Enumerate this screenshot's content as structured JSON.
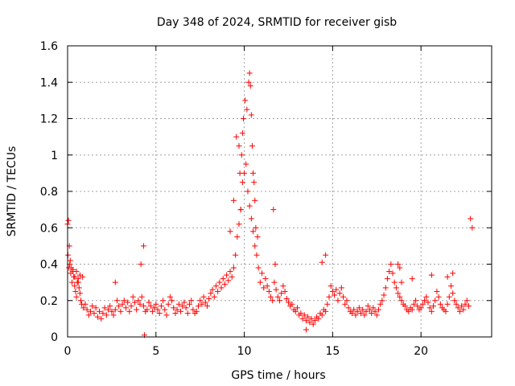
{
  "chart_data": {
    "type": "scatter",
    "title": "Day 348 of 2024, SRMTID for receiver gisb",
    "xlabel": "GPS time / hours",
    "ylabel": "SRMTID / TECUs",
    "xlim": [
      0,
      24
    ],
    "ylim": [
      0,
      1.6
    ],
    "xticks": [
      0,
      5,
      10,
      15,
      20
    ],
    "xtick_labels": [
      "0",
      "5",
      "10",
      "15",
      "20"
    ],
    "yticks": [
      0,
      0.2,
      0.4,
      0.6,
      0.8,
      1.0,
      1.2,
      1.4,
      1.6
    ],
    "ytick_labels": [
      "0",
      "0.2",
      "0.4",
      "0.6",
      "0.8",
      "1",
      "1.2",
      "1.4",
      "1.6"
    ],
    "grid": true,
    "marker": "plus",
    "color": "#ff0000",
    "series": [
      {
        "name": "SRMTID",
        "x": [
          0.0,
          0.05,
          0.1,
          0.15,
          0.2,
          0.25,
          0.3,
          0.35,
          0.4,
          0.45,
          0.5,
          0.55,
          0.6,
          0.65,
          0.7,
          0.75,
          0.8,
          0.9,
          1.0,
          1.1,
          1.2,
          1.3,
          1.4,
          1.5,
          1.6,
          1.7,
          1.8,
          1.9,
          2.0,
          2.1,
          2.2,
          2.3,
          2.4,
          2.5,
          2.6,
          2.7,
          2.8,
          2.9,
          3.0,
          3.1,
          3.2,
          3.3,
          3.4,
          3.5,
          3.6,
          3.7,
          3.8,
          3.9,
          4.0,
          4.1,
          4.2,
          4.3,
          4.4,
          4.5,
          4.6,
          4.7,
          4.8,
          4.9,
          5.0,
          5.1,
          5.2,
          5.3,
          5.4,
          5.5,
          5.6,
          5.7,
          5.8,
          5.9,
          6.0,
          6.1,
          6.2,
          6.3,
          6.4,
          6.5,
          6.6,
          6.7,
          6.8,
          6.9,
          7.0,
          7.1,
          7.2,
          7.3,
          7.4,
          7.5,
          7.6,
          7.7,
          7.8,
          7.9,
          8.0,
          8.1,
          8.2,
          8.3,
          8.4,
          8.5,
          8.6,
          8.7,
          8.8,
          8.9,
          9.0,
          9.1,
          9.2,
          9.3,
          9.4,
          9.5,
          9.6,
          9.7,
          9.8,
          9.9,
          10.0,
          10.1,
          10.2,
          10.3,
          10.4,
          10.5,
          10.6,
          10.7,
          10.8,
          10.9,
          11.0,
          11.1,
          11.2,
          11.3,
          11.4,
          11.5,
          11.6,
          11.7,
          11.8,
          11.9,
          12.0,
          12.1,
          12.2,
          12.3,
          12.4,
          12.5,
          12.6,
          12.7,
          12.8,
          12.9,
          13.0,
          13.1,
          13.2,
          13.3,
          13.4,
          13.5,
          13.6,
          13.7,
          13.8,
          13.9,
          14.0,
          14.1,
          14.2,
          14.3,
          14.4,
          14.5,
          14.6,
          14.7,
          14.8,
          14.9,
          15.0,
          15.1,
          15.2,
          15.3,
          15.4,
          15.5,
          15.6,
          15.7,
          15.8,
          15.9,
          16.0,
          16.1,
          16.2,
          16.3,
          16.4,
          16.5,
          16.6,
          16.7,
          16.8,
          16.9,
          17.0,
          17.1,
          17.2,
          17.3,
          17.4,
          17.5,
          17.6,
          17.7,
          17.8,
          17.9,
          18.0,
          18.1,
          18.2,
          18.3,
          18.4,
          18.5,
          18.6,
          18.7,
          18.8,
          18.9,
          19.0,
          19.1,
          19.2,
          19.3,
          19.4,
          19.5,
          19.6,
          19.7,
          19.8,
          19.9,
          20.0,
          20.1,
          20.2,
          20.3,
          20.4,
          20.5,
          20.6,
          20.7,
          20.8,
          20.9,
          21.0,
          21.1,
          21.2,
          21.3,
          21.4,
          21.5,
          21.6,
          21.7,
          21.8,
          21.9,
          22.0,
          22.1,
          22.2,
          22.3,
          22.4,
          22.5,
          22.6,
          22.7,
          22.8,
          22.9,
          0.02,
          0.08,
          0.12,
          0.18,
          0.3,
          0.4,
          0.5,
          0.6,
          0.7,
          0.85,
          2.7,
          4.15,
          4.3,
          9.2,
          9.4,
          9.55,
          9.7,
          9.75,
          9.8,
          9.85,
          9.9,
          9.95,
          10.05,
          10.15,
          10.25,
          10.3,
          10.35,
          10.4,
          10.45,
          10.5,
          10.55,
          10.6,
          10.65,
          10.75,
          11.65,
          11.75,
          14.4,
          14.6,
          18.7,
          18.8,
          18.9,
          19.5,
          20.6,
          21.5,
          21.8,
          4.35,
          13.5
        ],
        "y": [
          0.62,
          0.64,
          0.5,
          0.42,
          0.38,
          0.3,
          0.36,
          0.33,
          0.28,
          0.25,
          0.22,
          0.3,
          0.32,
          0.27,
          0.24,
          0.2,
          0.18,
          0.16,
          0.18,
          0.15,
          0.12,
          0.14,
          0.17,
          0.13,
          0.16,
          0.11,
          0.14,
          0.1,
          0.13,
          0.16,
          0.12,
          0.15,
          0.17,
          0.14,
          0.12,
          0.15,
          0.2,
          0.17,
          0.14,
          0.18,
          0.2,
          0.16,
          0.19,
          0.14,
          0.17,
          0.22,
          0.19,
          0.15,
          0.2,
          0.18,
          0.22,
          0.17,
          0.14,
          0.15,
          0.19,
          0.17,
          0.14,
          0.16,
          0.18,
          0.15,
          0.13,
          0.17,
          0.2,
          0.15,
          0.12,
          0.18,
          0.22,
          0.2,
          0.16,
          0.13,
          0.15,
          0.18,
          0.14,
          0.17,
          0.19,
          0.16,
          0.13,
          0.18,
          0.2,
          0.15,
          0.13,
          0.14,
          0.17,
          0.2,
          0.18,
          0.22,
          0.19,
          0.17,
          0.21,
          0.24,
          0.26,
          0.22,
          0.28,
          0.25,
          0.3,
          0.27,
          0.32,
          0.29,
          0.34,
          0.31,
          0.36,
          0.33,
          0.38,
          0.45,
          0.55,
          0.62,
          0.7,
          0.85,
          0.9,
          0.95,
          0.8,
          0.72,
          0.65,
          0.58,
          0.5,
          0.45,
          0.38,
          0.3,
          0.35,
          0.27,
          0.32,
          0.28,
          0.25,
          0.22,
          0.2,
          0.3,
          0.26,
          0.22,
          0.2,
          0.24,
          0.28,
          0.25,
          0.21,
          0.19,
          0.17,
          0.18,
          0.15,
          0.14,
          0.16,
          0.12,
          0.13,
          0.1,
          0.12,
          0.09,
          0.11,
          0.08,
          0.1,
          0.07,
          0.09,
          0.11,
          0.1,
          0.13,
          0.12,
          0.15,
          0.14,
          0.18,
          0.22,
          0.28,
          0.25,
          0.23,
          0.26,
          0.2,
          0.24,
          0.27,
          0.22,
          0.18,
          0.2,
          0.16,
          0.14,
          0.13,
          0.15,
          0.12,
          0.14,
          0.16,
          0.13,
          0.15,
          0.12,
          0.14,
          0.17,
          0.15,
          0.13,
          0.16,
          0.14,
          0.12,
          0.15,
          0.18,
          0.2,
          0.23,
          0.27,
          0.32,
          0.36,
          0.4,
          0.35,
          0.3,
          0.27,
          0.24,
          0.22,
          0.2,
          0.18,
          0.17,
          0.15,
          0.14,
          0.16,
          0.15,
          0.18,
          0.2,
          0.17,
          0.15,
          0.16,
          0.18,
          0.2,
          0.22,
          0.19,
          0.16,
          0.14,
          0.17,
          0.2,
          0.25,
          0.22,
          0.18,
          0.16,
          0.15,
          0.14,
          0.18,
          0.22,
          0.28,
          0.24,
          0.2,
          0.18,
          0.16,
          0.14,
          0.17,
          0.15,
          0.18,
          0.2,
          0.17,
          0.65,
          0.6,
          0.45,
          0.38,
          0.4,
          0.35,
          0.37,
          0.33,
          0.36,
          0.3,
          0.34,
          0.33,
          0.3,
          0.4,
          0.5,
          0.58,
          0.75,
          1.1,
          1.05,
          0.9,
          0.7,
          1.0,
          1.12,
          1.2,
          1.3,
          1.25,
          1.4,
          1.45,
          1.38,
          1.22,
          1.05,
          0.9,
          0.85,
          0.75,
          0.6,
          0.55,
          0.7,
          0.4,
          0.41,
          0.45,
          0.4,
          0.38,
          0.3,
          0.32,
          0.34,
          0.33,
          0.35,
          0.01,
          0.04
        ]
      }
    ]
  }
}
